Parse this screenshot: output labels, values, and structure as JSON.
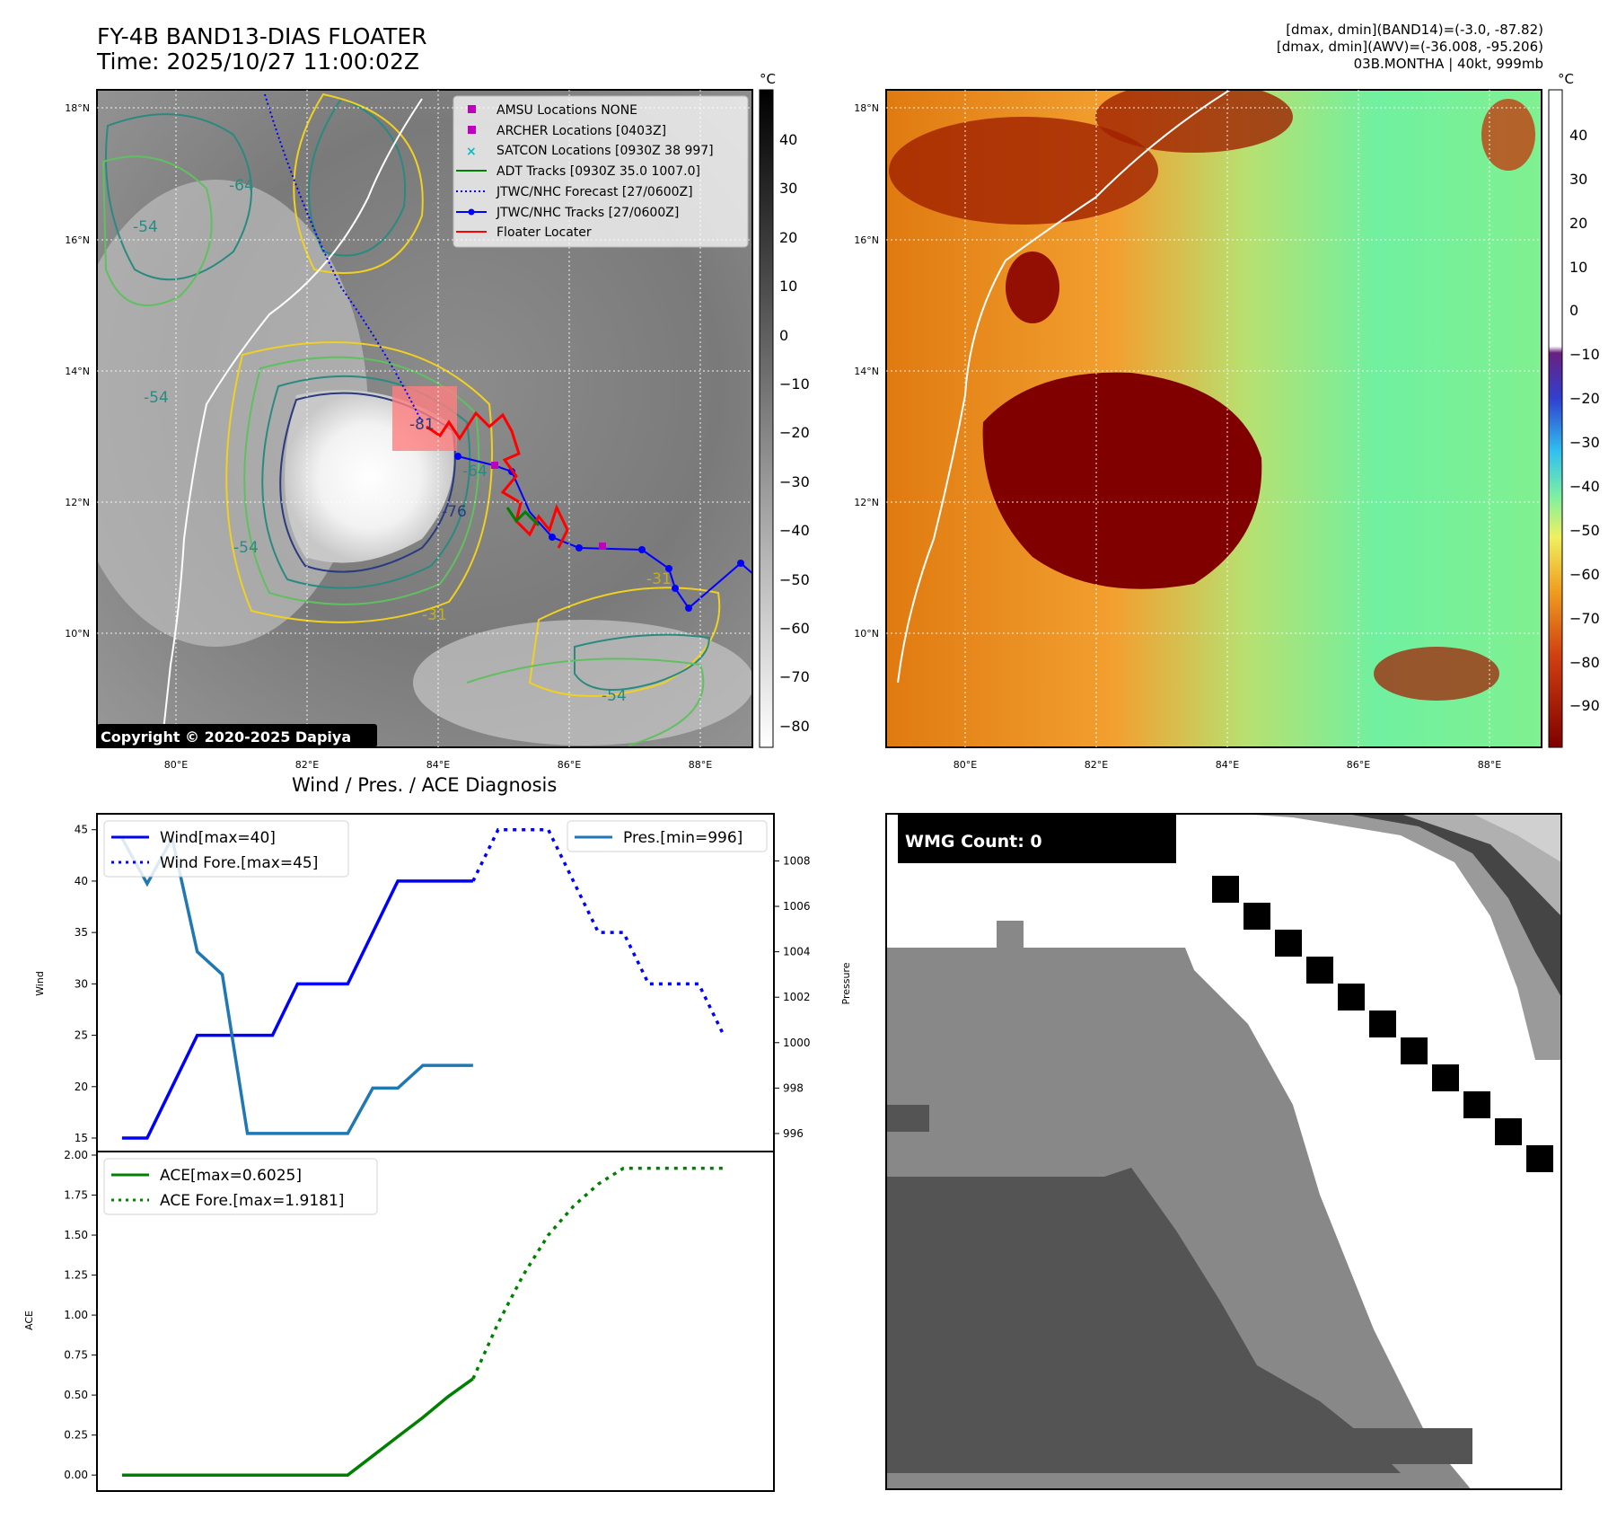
{
  "header": {
    "title": "FY-4B BAND13-DIAS FLOATER",
    "time": "Time: 2025/10/27 11:00:02Z",
    "info_lines": [
      "[dmax, dmin](BAND14)=(-3.0, -87.82)",
      "[dmax, dmin](AWV)=(-36.008, -95.206)",
      "03B.MONTHA | 40kt, 999mb"
    ]
  },
  "map_panel": {
    "lon_ticks": [
      "80°E",
      "82°E",
      "84°E",
      "86°E",
      "88°E"
    ],
    "lat_ticks": [
      "18°N",
      "16°N",
      "14°N",
      "12°N",
      "10°N"
    ],
    "copyright": "Copyright © 2020-2025 Dapiya",
    "contour_labels": [
      "-31",
      "-54",
      "-64",
      "-76",
      "-81"
    ],
    "colorbar": {
      "unit": "°C",
      "ticks": [
        "40",
        "30",
        "20",
        "10",
        "0",
        "−10",
        "−20",
        "−30",
        "−40",
        "−50",
        "−60",
        "−70",
        "−80"
      ]
    },
    "legend": [
      "AMSU Locations NONE",
      "ARCHER Locations [0403Z]",
      "SATCON Locations [0930Z 38 997]",
      "ADT Tracks [0930Z 35.0 1007.0]",
      "JTWC/NHC Forecast [27/0600Z]",
      "JTWC/NHC Tracks [27/0600Z]",
      "Floater Locater"
    ],
    "colors": {
      "amsu": "#c000c0",
      "archer": "#c000c0",
      "satcon": "#00c0c0",
      "adt": "#008000",
      "forecast": "#0000ff",
      "tracks": "#0000ff",
      "floater": "#ff0000"
    }
  },
  "awv_panel": {
    "lon_ticks": [
      "80°E",
      "82°E",
      "84°E",
      "86°E",
      "88°E"
    ],
    "lat_ticks": [
      "18°N",
      "16°N",
      "14°N",
      "12°N",
      "10°N"
    ],
    "colorbar": {
      "unit": "°C",
      "ticks": [
        "40",
        "30",
        "20",
        "10",
        "0",
        "−10",
        "−20",
        "−30",
        "−40",
        "−50",
        "−60",
        "−70",
        "−80",
        "−90"
      ]
    }
  },
  "diagnosis": {
    "title": "Wind / Pres. / ACE Diagnosis",
    "ylabel_wind": "Wind",
    "ylabel_pres": "Pressure",
    "ylabel_ace": "ACE",
    "legend_wind": "Wind[max=40]",
    "legend_wind_fore": "Wind Fore.[max=45]",
    "legend_pres": "Pres.[min=996]",
    "legend_ace": "ACE[max=0.6025]",
    "legend_ace_fore": "ACE Fore.[max=1.9181]",
    "wind_ticks": [
      "15",
      "20",
      "25",
      "30",
      "35",
      "40",
      "45"
    ],
    "pres_ticks": [
      "996",
      "998",
      "1000",
      "1002",
      "1004",
      "1006",
      "1008"
    ],
    "ace_ticks": [
      "0.00",
      "0.25",
      "0.50",
      "0.75",
      "1.00",
      "1.25",
      "1.50",
      "1.75",
      "2.00"
    ]
  },
  "wmg_panel": {
    "label": "WMG Count: 0"
  },
  "chart_data": [
    {
      "type": "line",
      "title": "Wind / Pres. / ACE Diagnosis",
      "ylabel": "Wind",
      "ylim": [
        15,
        45.5
      ],
      "xlim": [
        -1,
        26
      ],
      "series": [
        {
          "name": "Wind[max=40]",
          "color": "#0000ff",
          "style": "solid",
          "axis": "left",
          "x": [
            0,
            1,
            2,
            3,
            4,
            5,
            6,
            7,
            8,
            9,
            10,
            11,
            12,
            13,
            14
          ],
          "values": [
            15,
            15,
            20,
            25,
            25,
            25,
            25,
            30,
            30,
            30,
            35,
            40,
            40,
            40,
            40
          ]
        },
        {
          "name": "Wind Fore.[max=45]",
          "color": "#0000ff",
          "style": "dotted",
          "axis": "left",
          "x": [
            14,
            15,
            16,
            17,
            18,
            19,
            20,
            21,
            22,
            23,
            24
          ],
          "values": [
            40,
            45,
            45,
            45,
            40,
            35,
            35,
            30,
            30,
            30,
            25
          ]
        },
        {
          "name": "Pres.[min=996]",
          "color": "#1f77b4",
          "style": "solid",
          "axis": "right",
          "x": [
            0,
            1,
            2,
            3,
            4,
            5,
            6,
            7,
            8,
            9,
            10,
            11,
            12,
            13,
            14
          ],
          "values": [
            1009,
            1007,
            1009,
            1004,
            1003,
            996,
            996,
            996,
            996,
            996,
            998,
            998,
            999,
            999,
            999
          ]
        }
      ],
      "y2label": "Pressure",
      "y2lim": [
        995.8,
        1009.6
      ]
    },
    {
      "type": "line",
      "ylabel": "ACE",
      "ylim": [
        -0.1,
        2.0
      ],
      "xlim": [
        -1,
        26
      ],
      "series": [
        {
          "name": "ACE[max=0.6025]",
          "color": "#008000",
          "style": "solid",
          "x": [
            0,
            1,
            2,
            3,
            4,
            5,
            6,
            7,
            8,
            9,
            10,
            11,
            12,
            13,
            14
          ],
          "values": [
            0,
            0,
            0,
            0,
            0,
            0,
            0,
            0,
            0,
            0,
            0.12,
            0.24,
            0.36,
            0.49,
            0.6025
          ]
        },
        {
          "name": "ACE Fore.[max=1.9181]",
          "color": "#008000",
          "style": "dotted",
          "x": [
            14,
            15,
            16,
            17,
            18,
            19,
            20,
            21,
            22,
            23,
            24
          ],
          "values": [
            0.6025,
            0.95,
            1.25,
            1.5,
            1.68,
            1.82,
            1.9181,
            1.9181,
            1.9181,
            1.9181,
            1.9181
          ]
        }
      ]
    }
  ]
}
